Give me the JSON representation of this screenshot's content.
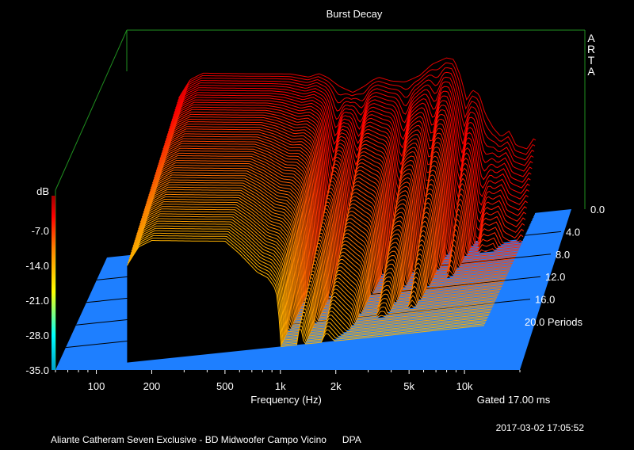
{
  "chart_data": {
    "type": "waterfall",
    "title": "Burst Decay",
    "brand": "ARTA",
    "xlabel": "Frequency (Hz)",
    "x_scale": "log",
    "x_range_hz": [
      60,
      20000
    ],
    "x_ticks": [
      {
        "value": 100,
        "label": "100"
      },
      {
        "value": 200,
        "label": "200"
      },
      {
        "value": 500,
        "label": "500"
      },
      {
        "value": 1000,
        "label": "1k"
      },
      {
        "value": 2000,
        "label": "2k"
      },
      {
        "value": 5000,
        "label": "5k"
      },
      {
        "value": 10000,
        "label": "10k"
      }
    ],
    "zlabel": "dB",
    "z_range_db": [
      -35,
      0
    ],
    "z_ticks": [
      "-7.0",
      "-14.0",
      "-21.0",
      "-28.0",
      "-35.0"
    ],
    "depth_unit": "Periods",
    "depth_range": [
      0,
      20
    ],
    "depth_ticks": [
      "0.0",
      "4.0",
      "8.0",
      "12.0",
      "16.0",
      "20.0"
    ],
    "gated_label": "Gated 17.00 ms",
    "timestamp": "2017-03-02  17:05:52",
    "caption": "Aliante Catheram Seven Exclusive - BD Midwoofer Campo Vicino      DPA",
    "initial_response": {
      "freq_hz": [
        150,
        170,
        200,
        260,
        340,
        450,
        600,
        750,
        850,
        950,
        1100,
        1300,
        1500,
        1650,
        1800,
        2100,
        2500,
        3000,
        3500,
        4200,
        4600,
        5000,
        5400,
        5800,
        6300,
        6800,
        7500,
        8300,
        9200,
        10000,
        11500,
        12500
      ],
      "level_db": [
        -4,
        -1,
        0,
        -0.5,
        -1,
        -1.5,
        -2,
        -3,
        -2.5,
        -3.5,
        -5.5,
        -7,
        -6,
        -5,
        -4.5,
        -5.5,
        -6,
        -5,
        -3,
        -2,
        -2.5,
        -6,
        -11,
        -9,
        -10,
        -14,
        -17,
        -19,
        -18,
        -21,
        -22,
        -20
      ]
    },
    "colors": {
      "background": "#000000",
      "floor": "#1e7fff",
      "frame": "#1f8f1f",
      "text": "#ffffff",
      "colormap": [
        "#00d5d5",
        "#00ffff",
        "#ffff00",
        "#ff8000",
        "#ff0000",
        "#b40000"
      ]
    }
  }
}
